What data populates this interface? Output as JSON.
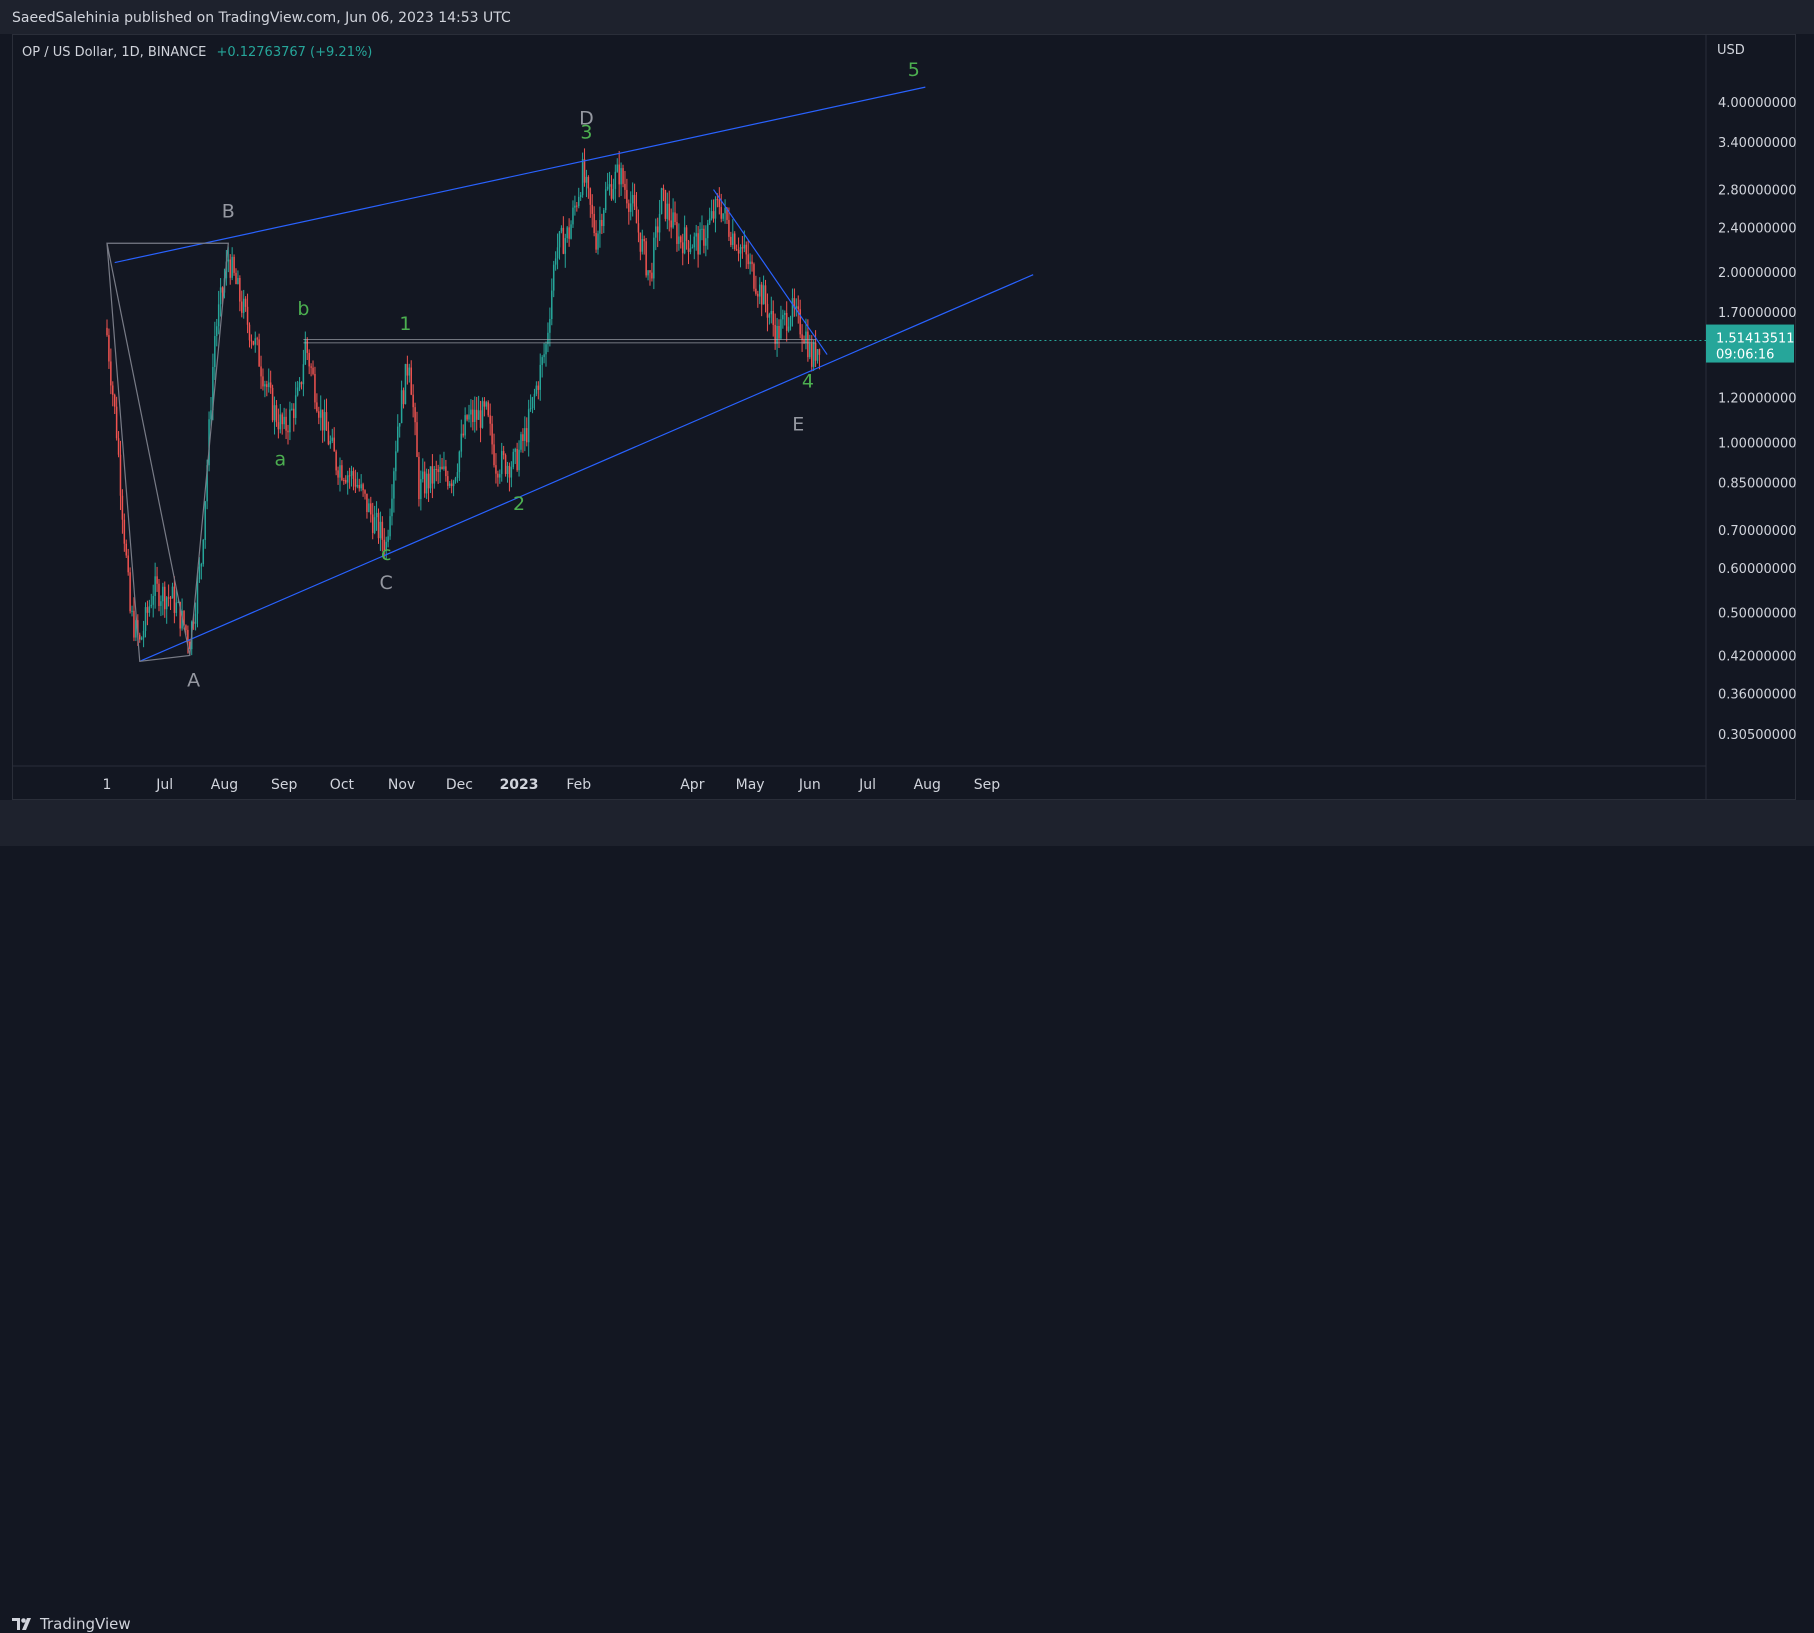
{
  "header": {
    "published": "SaeedSalehinia published on TradingView.com, Jun 06, 2023 14:53 UTC"
  },
  "legend": {
    "symbol": "OP / US Dollar, 1D, BINANCE",
    "change": "+0.12763767 (+9.21%)"
  },
  "price_axis": {
    "currency": "USD"
  },
  "footer": {
    "brand": "TradingView"
  },
  "colors": {
    "up": "#26a69a",
    "down": "#ef5350",
    "trendline": "#2962ff",
    "wave_green": "#4caf50",
    "wave_gray": "#9598a1",
    "bg": "#131722"
  },
  "last_price": {
    "value": "1.51413511",
    "countdown": "09:06:16"
  },
  "chart_data": {
    "type": "candlestick",
    "title": "OP / US Dollar, 1D, BINANCE",
    "yscale": "log",
    "yticks": [
      "4.00000000",
      "3.40000000",
      "2.80000000",
      "2.40000000",
      "2.00000000",
      "1.70000000",
      "1.20000000",
      "1.00000000",
      "0.85000000",
      "0.70000000",
      "0.60000000",
      "0.50000000",
      "0.42000000",
      "0.36000000",
      "0.30500000"
    ],
    "xticks": [
      "1",
      "Jul",
      "Aug",
      "Sep",
      "Oct",
      "Nov",
      "Dec",
      "2023",
      "Feb",
      "Apr",
      "May",
      "Jun",
      "Jul",
      "Aug",
      "Sep"
    ],
    "price_path": [
      [
        "2022-06-01",
        1.55
      ],
      [
        "2022-06-06",
        1.05
      ],
      [
        "2022-06-13",
        0.5
      ],
      [
        "2022-06-18",
        0.44
      ],
      [
        "2022-06-25",
        0.55
      ],
      [
        "2022-07-05",
        0.53
      ],
      [
        "2022-07-14",
        0.45
      ],
      [
        "2022-07-20",
        0.62
      ],
      [
        "2022-07-27",
        1.55
      ],
      [
        "2022-08-03",
        2.12
      ],
      [
        "2022-08-10",
        1.75
      ],
      [
        "2022-08-18",
        1.45
      ],
      [
        "2022-08-26",
        1.15
      ],
      [
        "2022-09-01",
        1.05
      ],
      [
        "2022-09-09",
        1.22
      ],
      [
        "2022-09-12",
        1.5
      ],
      [
        "2022-09-20",
        1.12
      ],
      [
        "2022-09-28",
        0.92
      ],
      [
        "2022-10-08",
        0.86
      ],
      [
        "2022-10-18",
        0.72
      ],
      [
        "2022-10-24",
        0.66
      ],
      [
        "2022-10-30",
        1.08
      ],
      [
        "2022-11-05",
        1.42
      ],
      [
        "2022-11-10",
        0.83
      ],
      [
        "2022-11-20",
        0.88
      ],
      [
        "2022-11-28",
        0.87
      ],
      [
        "2022-12-05",
        1.1
      ],
      [
        "2022-12-15",
        1.12
      ],
      [
        "2022-12-20",
        0.92
      ],
      [
        "2022-12-30",
        0.92
      ],
      [
        "2023-01-05",
        1.05
      ],
      [
        "2023-01-10",
        1.25
      ],
      [
        "2023-01-15",
        1.48
      ],
      [
        "2023-01-20",
        2.2
      ],
      [
        "2023-01-27",
        2.35
      ],
      [
        "2023-02-03",
        3.0
      ],
      [
        "2023-02-10",
        2.3
      ],
      [
        "2023-02-15",
        2.75
      ],
      [
        "2023-02-22",
        3.0
      ],
      [
        "2023-03-01",
        2.6
      ],
      [
        "2023-03-10",
        1.95
      ],
      [
        "2023-03-16",
        2.7
      ],
      [
        "2023-03-25",
        2.3
      ],
      [
        "2023-04-05",
        2.25
      ],
      [
        "2023-04-15",
        2.65
      ],
      [
        "2023-04-20",
        2.4
      ],
      [
        "2023-04-28",
        2.15
      ],
      [
        "2023-05-08",
        1.8
      ],
      [
        "2023-05-15",
        1.55
      ],
      [
        "2023-05-22",
        1.72
      ],
      [
        "2023-05-30",
        1.55
      ],
      [
        "2023-06-02",
        1.4
      ],
      [
        "2023-06-06",
        1.51
      ]
    ],
    "trendlines": [
      {
        "from": [
          "2022-06-05",
          2.08
        ],
        "to": [
          "2023-07-31",
          4.25
        ]
      },
      {
        "from": [
          "2022-06-18",
          0.41
        ],
        "to": [
          "2023-09-25",
          1.98
        ]
      },
      {
        "from": [
          "2023-04-12",
          2.8
        ],
        "to": [
          "2023-06-10",
          1.43
        ]
      },
      {
        "from": [
          "2022-09-11",
          1.52
        ],
        "to": [
          "2023-06-04",
          1.52
        ]
      },
      {
        "from": [
          "2022-09-11",
          1.5
        ],
        "to": [
          "2023-06-04",
          1.5
        ]
      }
    ],
    "abc_path": [
      [
        "2022-06-01",
        2.25
      ],
      [
        "2022-06-18",
        0.41
      ],
      [
        "2022-07-14",
        0.42
      ],
      [
        "2022-08-03",
        2.25
      ],
      [
        "2022-06-01",
        2.25
      ],
      [
        "2022-07-14",
        0.42
      ]
    ],
    "annotations": [
      {
        "text": "B",
        "date": "2022-08-03",
        "price": 2.5,
        "color": "gray"
      },
      {
        "text": "A",
        "date": "2022-07-16",
        "price": 0.37,
        "color": "gray"
      },
      {
        "text": "b",
        "date": "2022-09-11",
        "price": 1.68,
        "color": "green"
      },
      {
        "text": "a",
        "date": "2022-08-30",
        "price": 0.91,
        "color": "green"
      },
      {
        "text": "1",
        "date": "2022-11-03",
        "price": 1.58,
        "color": "green"
      },
      {
        "text": "c",
        "date": "2022-10-24",
        "price": 0.62,
        "color": "green"
      },
      {
        "text": "C",
        "date": "2022-10-24",
        "price": 0.55,
        "color": "gray"
      },
      {
        "text": "2",
        "date": "2023-01-01",
        "price": 0.76,
        "color": "green"
      },
      {
        "text": "D",
        "date": "2023-02-05",
        "price": 3.65,
        "color": "gray"
      },
      {
        "text": "3",
        "date": "2023-02-05",
        "price": 3.45,
        "color": "green"
      },
      {
        "text": "5",
        "date": "2023-07-25",
        "price": 4.45,
        "color": "green"
      },
      {
        "text": "4",
        "date": "2023-05-31",
        "price": 1.25,
        "color": "green"
      },
      {
        "text": "E",
        "date": "2023-05-26",
        "price": 1.05,
        "color": "gray"
      }
    ]
  }
}
